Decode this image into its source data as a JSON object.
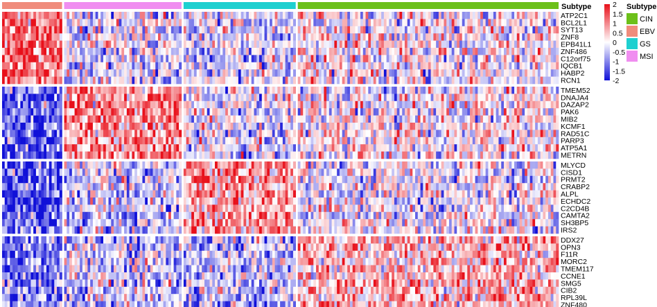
{
  "chart_data": {
    "type": "heatmap",
    "annotation": {
      "title": "Subtype",
      "groups": [
        {
          "name": "EBV",
          "color": "#F08C7C",
          "samples": 23
        },
        {
          "name": "MSI",
          "color": "#F08EF0",
          "samples": 45
        },
        {
          "name": "GS",
          "color": "#1ED0D0",
          "samples": 43
        },
        {
          "name": "CIN",
          "color": "#6CC01A",
          "samples": 100
        }
      ]
    },
    "legend_entries": [
      {
        "name": "CIN",
        "color": "#6CC01A"
      },
      {
        "name": "EBV",
        "color": "#F08C7C"
      },
      {
        "name": "GS",
        "color": "#1ED0D0"
      },
      {
        "name": "MSI",
        "color": "#F08EF0"
      }
    ],
    "color_scale": {
      "min": -2,
      "max": 2,
      "low_color": "#1010D8",
      "mid_color": "#ffffff",
      "high_color": "#E8101A",
      "ticks": [
        "2",
        "1.5",
        "1",
        "0.5",
        "0",
        "-0.5",
        "-1",
        "-1.5",
        "-2"
      ]
    },
    "gene_clusters": [
      {
        "genes": [
          "ATP2C1",
          "BCL2L1",
          "SYT13",
          "ZNF8",
          "EPB41L1",
          "ZNF486",
          "C12orf75",
          "IQCB1",
          "HABP2",
          "RCN1"
        ],
        "group_means": [
          1.2,
          -0.2,
          -0.3,
          0.05
        ]
      },
      {
        "genes": [
          "TMEM52",
          "DNAJA4",
          "DAZAP2",
          "PAK6",
          "MIB2",
          "KCMF1",
          "RAD51C",
          "PARP3",
          "ATP5A1",
          "METRN"
        ],
        "group_means": [
          -1.3,
          1.0,
          -0.2,
          0.1
        ]
      },
      {
        "genes": [
          "MLYCD",
          "CISD1",
          "PRMT2",
          "CRABP2",
          "ALPL",
          "ECHDC2",
          "C2CD4B",
          "CAMTA2",
          "SH3BP5",
          "IRS2"
        ],
        "group_means": [
          -1.4,
          -0.3,
          0.8,
          -0.1
        ]
      },
      {
        "genes": [
          "DDX27",
          "OPN3",
          "F11R",
          "MORC2",
          "TMEM117",
          "CCNE1",
          "SMG5",
          "CIB2",
          "RPL39L",
          "ZNF480"
        ],
        "group_means": [
          -1.0,
          -0.4,
          -0.5,
          0.6
        ]
      }
    ]
  }
}
